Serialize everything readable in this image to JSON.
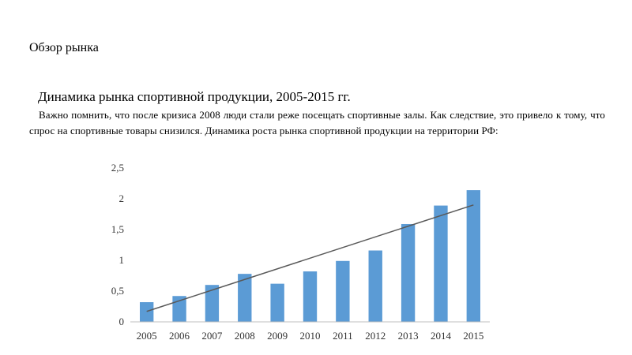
{
  "document": {
    "section_heading": "Обзор рынка",
    "title": "Динамика рынка спортивной продукции, 2005-2015 гг.",
    "paragraph": "Важно помнить, что после кризиса 2008 люди стали реже посещать спортивные залы. Как следствие, это привело к тому, что спрос на спортивные товары снизился. Динамика роста рынка спортивной продукции на территории РФ:"
  },
  "chart_data": {
    "type": "bar",
    "categories": [
      "2005",
      "2006",
      "2007",
      "2008",
      "2009",
      "2010",
      "2011",
      "2012",
      "2013",
      "2014",
      "2015"
    ],
    "values": [
      0.32,
      0.42,
      0.6,
      0.78,
      0.62,
      0.82,
      0.99,
      1.16,
      1.59,
      1.89,
      2.14
    ],
    "trendline": {
      "type": "linear",
      "start": 0.17,
      "end": 1.9
    },
    "yticks": [
      "0",
      "0,5",
      "1",
      "1,5",
      "2",
      "2,5"
    ],
    "ylim": [
      0,
      2.5
    ],
    "grid": false,
    "legend": "none",
    "title": "",
    "xlabel": "",
    "ylabel": "",
    "colors": {
      "bar": "#5b9bd5",
      "trendline": "#595959",
      "axis": "#bfbfbf"
    }
  }
}
